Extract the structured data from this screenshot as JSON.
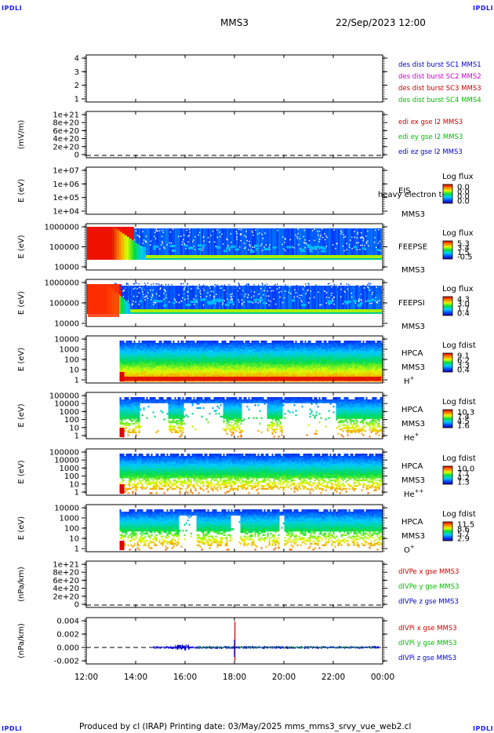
{
  "corners": {
    "tl": "IPDLI",
    "tr": "IPDLI",
    "bl": "IPDLI",
    "br": "IPDLI"
  },
  "header": {
    "mission": "MMS3",
    "date_time": "22/Sep/2023 12:00"
  },
  "footer": {
    "text": "Produced by cl (IRAP)   Printing date: 03/May/2025   mms_mms3_srvy_vue_web2.cl"
  },
  "chart_data": {
    "type": "heatmap",
    "x_ticks": [
      "12:00",
      "14:00",
      "16:00",
      "18:00",
      "20:00",
      "22:00",
      "00:00"
    ],
    "panels": [
      {
        "id": "p1",
        "kind": "line",
        "ylabel": "",
        "yticks": [
          "4",
          "3",
          "2",
          "1"
        ],
        "legend": [
          {
            "text": "des dist burst SC1 MMS1",
            "color": "#0000cc"
          },
          {
            "text": "des dist burst SC2 MMS2",
            "color": "#cc00cc"
          },
          {
            "text": "des dist burst SC3 MMS3",
            "color": "#cc0000"
          },
          {
            "text": "des dist burst SC4 MMS4",
            "color": "#00bb00"
          }
        ]
      },
      {
        "id": "p2",
        "kind": "line",
        "ylabel": "(mV/m)",
        "yticks": [
          "1e+21",
          "8e+20",
          "6e+20",
          "4e+20",
          "2e+20",
          "0"
        ],
        "legend": [
          {
            "text": "edi ex gse l2 MMS3",
            "color": "#cc0000"
          },
          {
            "text": "edi ey gse l2 MMS3",
            "color": "#00bb00"
          },
          {
            "text": "edi ez gse l2 MMS3",
            "color": "#0000cc"
          }
        ]
      },
      {
        "id": "p3",
        "kind": "spec",
        "ylabel": "E (eV)",
        "yticks": [
          "1e+07",
          "1e+06",
          "1e+05",
          "1e+04"
        ],
        "inst": "EIS",
        "overlay": "heavy electron to",
        "sc": "MMS3",
        "cb_title": "Log flux",
        "cb_ticks": [
          "0.0",
          "0.0",
          "0.0",
          "0.0"
        ]
      },
      {
        "id": "p4",
        "kind": "spec",
        "ylabel": "E (eV)",
        "yticks": [
          "1000000",
          "100000",
          "10000"
        ],
        "inst": "FEEPSE",
        "sc": "MMS3",
        "cb_title": "Log flux",
        "cb_ticks": [
          "5.3",
          "3.4",
          "1.5",
          "-0.5"
        ]
      },
      {
        "id": "p5",
        "kind": "spec",
        "ylabel": "E (eV)",
        "yticks": [
          "1000000",
          "100000",
          "10000"
        ],
        "inst": "FEEPSI",
        "sc": "MMS3",
        "cb_title": "Log flux",
        "cb_ticks": [
          "4.3",
          "3.0",
          "1.7",
          "0.4"
        ]
      },
      {
        "id": "p6",
        "kind": "spec",
        "ylabel": "E (eV)",
        "yticks": [
          "10000",
          "1000",
          "100",
          "10",
          "1"
        ],
        "inst": "HPCA",
        "sc": "MMS3",
        "species": "H",
        "sup": "+",
        "cb_title": "Log fdist",
        "cb_ticks": [
          "9.1",
          "6.2",
          "3.3",
          "0.4"
        ]
      },
      {
        "id": "p7",
        "kind": "spec",
        "ylabel": "E (eV)",
        "yticks": [
          "100000",
          "10000",
          "1000",
          "100",
          "10",
          "1"
        ],
        "inst": "HPCA",
        "sc": "MMS3",
        "species": "He",
        "sup": "+",
        "cb_title": "Log fdist",
        "cb_ticks": [
          "10.3",
          "7.4",
          "4.5",
          "1.6"
        ]
      },
      {
        "id": "p8",
        "kind": "spec",
        "ylabel": "E (eV)",
        "yticks": [
          "100000",
          "10000",
          "1000",
          "100",
          "10",
          "1"
        ],
        "inst": "HPCA",
        "sc": "MMS3",
        "species": "He",
        "sup": "++",
        "cb_title": "Log fdist",
        "cb_ticks": [
          "10.0",
          "7.1",
          "4.2",
          "1.3"
        ]
      },
      {
        "id": "p9",
        "kind": "spec",
        "ylabel": "E (eV)",
        "yticks": [
          "10000",
          "1000",
          "100",
          "10",
          "1"
        ],
        "inst": "HPCA",
        "sc": "MMS3",
        "species": "O",
        "sup": "+",
        "cb_title": "Log fdist",
        "cb_ticks": [
          "11.5",
          "8.6",
          "5.7",
          "2.9"
        ]
      },
      {
        "id": "p10",
        "kind": "line",
        "ylabel": "(nPa/km)",
        "yticks": [
          "1e+21",
          "8e+20",
          "6e+20",
          "4e+20",
          "2e+20",
          "0"
        ],
        "legend": [
          {
            "text": "dIVPe x gse MMS3",
            "color": "#cc0000"
          },
          {
            "text": "dIVPe y gse MMS3",
            "color": "#00bb00"
          },
          {
            "text": "dIVPe z gse MMS3",
            "color": "#0000cc"
          }
        ]
      },
      {
        "id": "p11",
        "kind": "line",
        "ylabel": "(nPa/km)",
        "yticks": [
          "0.004",
          "0.002",
          "0.000",
          "-0.002"
        ],
        "legend": [
          {
            "text": "dIVPi x gse MMS3",
            "color": "#cc0000"
          },
          {
            "text": "dIVPi y gse MMS3",
            "color": "#00bb00"
          },
          {
            "text": "dIVPi z gse MMS3",
            "color": "#0000cc"
          }
        ]
      }
    ]
  }
}
